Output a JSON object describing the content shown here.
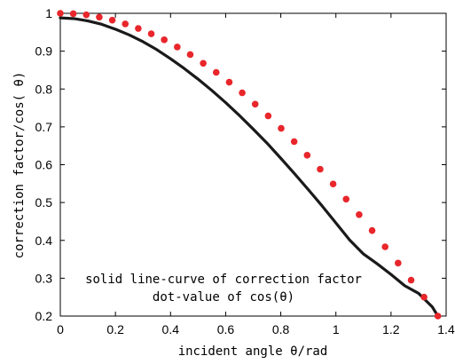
{
  "chart_data": {
    "type": "line",
    "title": "",
    "xlabel": "incident angle  θ/rad",
    "ylabel": "correction factor/cos( θ)",
    "xlim": [
      0,
      1.4
    ],
    "ylim": [
      0.2,
      1.0
    ],
    "x_ticks": [
      "0",
      "0.2",
      "0.4",
      "0.6",
      "0.8",
      "1",
      "1.2",
      "1.4"
    ],
    "y_ticks": [
      "0.2",
      "0.3",
      "0.4",
      "0.5",
      "0.6",
      "0.7",
      "0.8",
      "0.9",
      "1"
    ],
    "grid": false,
    "annotations": [
      "solid line-curve of correction factor",
      "dot-value of cos(θ)"
    ],
    "series": [
      {
        "kind": "line",
        "color": "#1a1a1a",
        "x": [
          0,
          0.05,
          0.1,
          0.15,
          0.2,
          0.25,
          0.3,
          0.35,
          0.4,
          0.45,
          0.5,
          0.55,
          0.6,
          0.65,
          0.7,
          0.75,
          0.8,
          0.85,
          0.9,
          0.95,
          1.0,
          1.05,
          1.1,
          1.15,
          1.2,
          1.25,
          1.3,
          1.35,
          1.37
        ],
        "y": [
          0.988,
          0.986,
          0.98,
          0.971,
          0.958,
          0.943,
          0.925,
          0.904,
          0.88,
          0.854,
          0.826,
          0.796,
          0.764,
          0.73,
          0.694,
          0.657,
          0.617,
          0.576,
          0.534,
          0.491,
          0.446,
          0.401,
          0.364,
          0.338,
          0.31,
          0.28,
          0.26,
          0.224,
          0.2
        ]
      },
      {
        "kind": "scatter",
        "color": "#e8262b",
        "x": [
          0,
          0.0471,
          0.0943,
          0.1414,
          0.1886,
          0.2357,
          0.2829,
          0.33,
          0.3771,
          0.4243,
          0.4714,
          0.5186,
          0.5657,
          0.6129,
          0.66,
          0.7071,
          0.7543,
          0.8014,
          0.8486,
          0.8957,
          0.9429,
          0.99,
          1.0371,
          1.0843,
          1.1314,
          1.1786,
          1.2257,
          1.2729,
          1.32,
          1.37
        ],
        "y": [
          1.0,
          0.999,
          0.996,
          0.99,
          0.982,
          0.972,
          0.96,
          0.946,
          0.93,
          0.911,
          0.891,
          0.868,
          0.844,
          0.818,
          0.79,
          0.76,
          0.729,
          0.696,
          0.661,
          0.625,
          0.588,
          0.549,
          0.509,
          0.468,
          0.426,
          0.383,
          0.34,
          0.295,
          0.25,
          0.2
        ]
      }
    ]
  }
}
